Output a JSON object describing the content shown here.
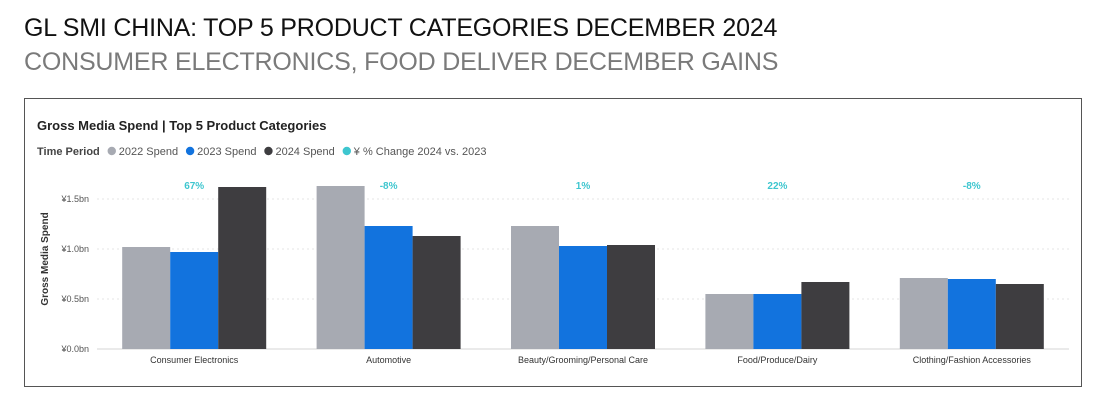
{
  "headline": "GL SMI CHINA: TOP 5 PRODUCT CATEGORIES DECEMBER 2024",
  "subheadline": "CONSUMER ELECTRONICS, FOOD DELIVER DECEMBER GAINS",
  "chart_data": {
    "type": "bar",
    "title": "Gross Media Spend | Top 5 Product Categories",
    "legend_label": "Time Period",
    "ylabel": "Gross Media Spend",
    "ylim": [
      0,
      1.7
    ],
    "yticks": [
      {
        "value": 0,
        "label": "¥0.0bn"
      },
      {
        "value": 0.5,
        "label": "¥0.5bn"
      },
      {
        "value": 1.0,
        "label": "¥1.0bn"
      },
      {
        "value": 1.5,
        "label": "¥1.5bn"
      }
    ],
    "grid": true,
    "legend_position": "top-left",
    "categories": [
      "Consumer Electronics",
      "Automotive",
      "Beauty/Grooming/Personal Care",
      "Food/Produce/Dairy",
      "Clothing/Fashion Accessories"
    ],
    "series": [
      {
        "name": "2022 Spend",
        "color": "#a7aab2",
        "values": [
          1.02,
          1.63,
          1.23,
          0.55,
          0.71
        ]
      },
      {
        "name": "2023 Spend",
        "color": "#1273de",
        "values": [
          0.97,
          1.23,
          1.03,
          0.55,
          0.7
        ]
      },
      {
        "name": "2024 Spend",
        "color": "#3e3d40",
        "values": [
          1.62,
          1.13,
          1.04,
          0.67,
          0.65
        ]
      }
    ],
    "change_series": {
      "name": "¥ % Change 2024 vs. 2023",
      "color": "#3ec6cf",
      "labels": [
        "67%",
        "-8%",
        "1%",
        "22%",
        "-8%"
      ]
    }
  }
}
